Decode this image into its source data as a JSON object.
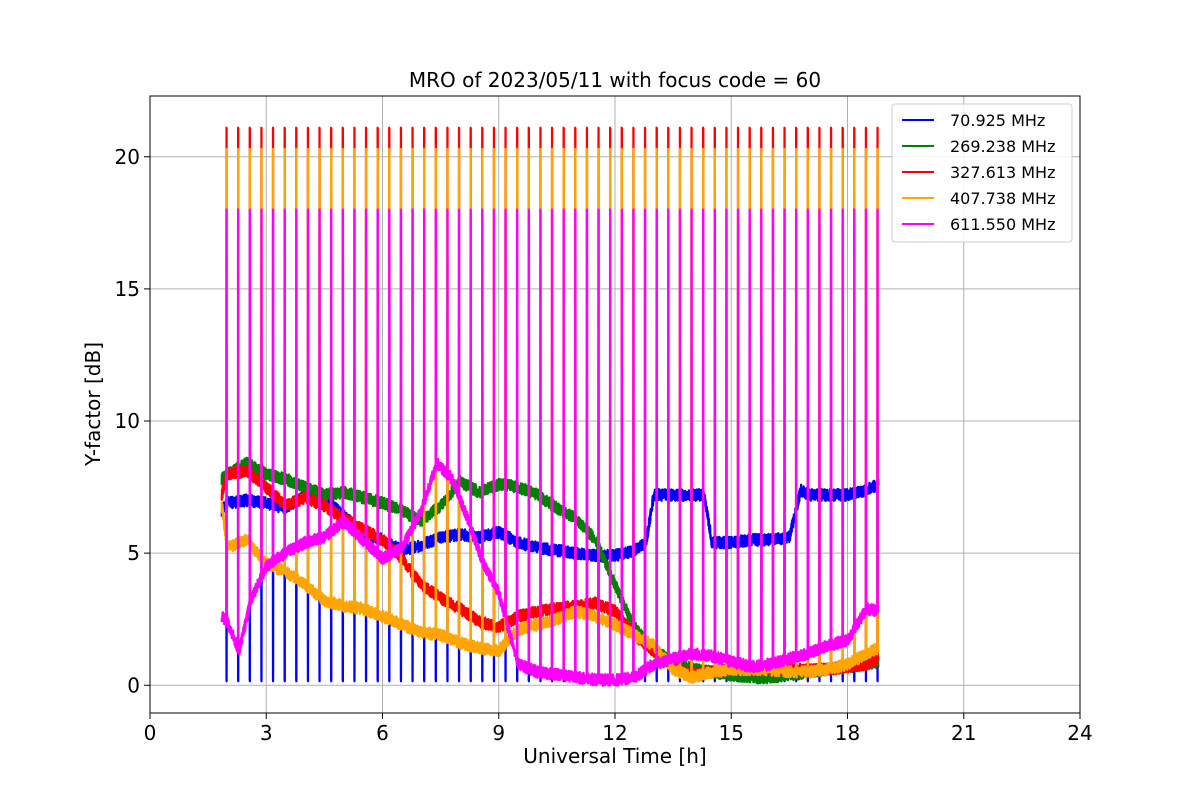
{
  "chart_data": {
    "type": "line",
    "title": "MRO of 2023/05/11 with focus code = 60",
    "xlabel": "Universal Time [h]",
    "ylabel": "Y-factor [dB]",
    "xlim": [
      0,
      24
    ],
    "ylim": [
      -1.05,
      22.3
    ],
    "x_ticks": [
      0,
      3,
      6,
      9,
      12,
      15,
      18,
      21,
      24
    ],
    "x_tick_labels": [
      "0",
      "3",
      "6",
      "9",
      "12",
      "15",
      "18",
      "21",
      "24"
    ],
    "y_ticks": [
      0,
      5,
      10,
      15,
      20
    ],
    "y_tick_labels": [
      "0",
      "5",
      "10",
      "15",
      "20"
    ],
    "grid": true,
    "legend_position": "top-right",
    "spike_interval_h": 0.3,
    "spike_start_h": 1.97,
    "data_range_h": [
      1.85,
      18.8
    ],
    "series": [
      {
        "name": " 70.925 MHz",
        "color": "#0000ff",
        "spike_peak": 0.2,
        "x": [
          1.85,
          2.0,
          2.5,
          3.0,
          3.5,
          4.0,
          4.5,
          5.0,
          5.5,
          6.0,
          6.5,
          7.0,
          7.5,
          8.0,
          8.5,
          9.0,
          9.5,
          10.0,
          10.5,
          11.0,
          11.5,
          12.0,
          12.5,
          12.8,
          13.0,
          13.5,
          14.0,
          14.3,
          14.5,
          15.0,
          15.5,
          16.0,
          16.5,
          16.8,
          17.0,
          17.5,
          18.0,
          18.5,
          18.8
        ],
        "y": [
          6.6,
          6.9,
          7.0,
          6.9,
          6.7,
          7.2,
          7.1,
          6.4,
          5.8,
          5.5,
          5.1,
          5.3,
          5.6,
          5.7,
          5.6,
          5.8,
          5.4,
          5.2,
          5.1,
          5.0,
          4.9,
          4.9,
          5.1,
          5.4,
          7.2,
          7.2,
          7.2,
          7.2,
          5.4,
          5.4,
          5.5,
          5.5,
          5.6,
          7.4,
          7.2,
          7.2,
          7.2,
          7.4,
          7.6
        ]
      },
      {
        "name": "269.238 MHz",
        "color": "#008000",
        "spike_peak": null,
        "x": [
          1.85,
          2.0,
          2.5,
          3.0,
          3.5,
          4.0,
          4.5,
          5.0,
          5.5,
          6.0,
          6.5,
          7.0,
          7.5,
          8.0,
          8.5,
          9.0,
          9.5,
          10.0,
          10.5,
          11.0,
          11.5,
          12.0,
          12.5,
          13.0,
          13.5,
          14.0,
          14.5,
          15.0,
          15.5,
          16.0,
          16.5,
          17.0,
          17.5,
          18.0,
          18.5,
          18.8
        ],
        "y": [
          7.8,
          8.0,
          8.4,
          8.0,
          7.8,
          7.5,
          7.2,
          7.3,
          7.1,
          6.9,
          6.6,
          6.2,
          6.8,
          7.7,
          7.3,
          7.6,
          7.5,
          7.2,
          6.7,
          6.3,
          5.5,
          3.8,
          2.2,
          1.3,
          0.9,
          0.6,
          0.5,
          0.4,
          0.3,
          0.3,
          0.4,
          0.5,
          0.6,
          0.7,
          0.8,
          0.9
        ]
      },
      {
        "name": "327.613 MHz",
        "color": "#ff0000",
        "spike_peak": 21.1,
        "x": [
          1.85,
          2.0,
          2.5,
          3.0,
          3.5,
          4.0,
          4.5,
          5.0,
          5.5,
          6.0,
          6.5,
          7.0,
          7.5,
          8.0,
          8.5,
          9.0,
          9.5,
          10.0,
          10.5,
          11.0,
          11.5,
          12.0,
          12.5,
          13.0,
          13.5,
          14.0,
          14.5,
          15.0,
          15.5,
          16.0,
          16.5,
          17.0,
          17.5,
          18.0,
          18.5,
          18.8
        ],
        "y": [
          7.2,
          8.0,
          8.1,
          7.5,
          6.8,
          7.1,
          6.8,
          6.3,
          5.9,
          5.5,
          4.8,
          3.8,
          3.3,
          2.9,
          2.4,
          2.2,
          2.6,
          2.8,
          2.9,
          3.0,
          3.1,
          2.8,
          1.9,
          1.3,
          0.7,
          0.4,
          0.5,
          0.6,
          0.6,
          0.6,
          0.6,
          0.6,
          0.6,
          0.7,
          0.8,
          1.0
        ]
      },
      {
        "name": "407.738 MHz",
        "color": "#ffa500",
        "spike_peak": 20.3,
        "x": [
          1.85,
          2.0,
          2.5,
          3.0,
          3.5,
          4.0,
          4.5,
          5.0,
          5.5,
          6.0,
          6.5,
          7.0,
          7.5,
          8.0,
          8.5,
          9.0,
          9.5,
          10.0,
          10.5,
          11.0,
          11.5,
          12.0,
          12.5,
          13.0,
          13.5,
          14.0,
          14.5,
          15.0,
          15.5,
          16.0,
          16.5,
          17.0,
          17.5,
          18.0,
          18.5,
          18.8
        ],
        "y": [
          6.8,
          5.2,
          5.5,
          4.6,
          4.3,
          3.8,
          3.2,
          3.0,
          2.9,
          2.6,
          2.3,
          2.0,
          1.9,
          1.6,
          1.4,
          1.3,
          2.1,
          2.3,
          2.5,
          2.8,
          2.6,
          2.3,
          1.9,
          1.5,
          0.6,
          0.3,
          0.5,
          0.6,
          0.6,
          0.6,
          0.5,
          0.5,
          0.6,
          0.8,
          1.2,
          1.4
        ]
      },
      {
        "name": "611.550 MHz",
        "color": "#ff00ff",
        "spike_peak": 18.0,
        "x": [
          1.85,
          2.0,
          2.3,
          2.6,
          3.0,
          3.5,
          4.0,
          4.5,
          5.0,
          5.5,
          6.0,
          6.5,
          7.0,
          7.4,
          7.8,
          8.2,
          8.6,
          9.0,
          9.5,
          10.0,
          10.5,
          11.0,
          11.5,
          12.0,
          12.5,
          13.0,
          13.5,
          14.0,
          14.5,
          15.0,
          15.5,
          16.0,
          16.5,
          17.0,
          17.5,
          18.0,
          18.5,
          18.8
        ],
        "y": [
          2.6,
          2.4,
          1.3,
          3.2,
          4.5,
          5.0,
          5.4,
          5.6,
          6.2,
          5.5,
          4.8,
          5.2,
          6.6,
          8.4,
          7.8,
          6.3,
          4.6,
          3.5,
          0.8,
          0.5,
          0.4,
          0.3,
          0.2,
          0.2,
          0.3,
          0.8,
          1.0,
          1.2,
          1.1,
          0.9,
          0.7,
          0.8,
          1.0,
          1.2,
          1.5,
          1.7,
          2.9,
          2.8
        ]
      }
    ]
  }
}
